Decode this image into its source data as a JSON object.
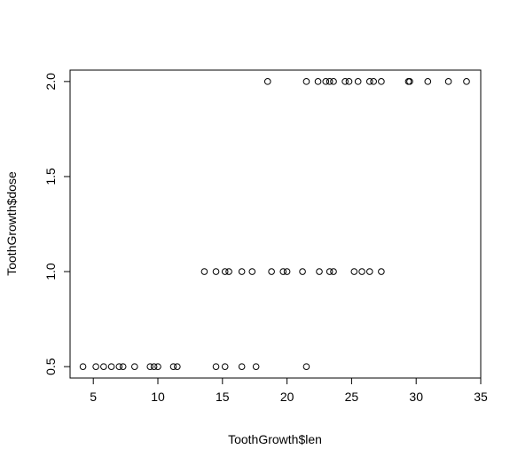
{
  "chart_data": {
    "type": "scatter",
    "title": "",
    "xlabel": "ToothGrowth$len",
    "ylabel": "ToothGrowth$dose",
    "xlim": [
      3.2,
      35
    ],
    "ylim": [
      0.44,
      2.06
    ],
    "x_ticks": [
      5,
      10,
      15,
      20,
      25,
      30,
      35
    ],
    "y_ticks": [
      0.5,
      1.0,
      1.5,
      2.0
    ],
    "x_tick_labels": [
      "5",
      "10",
      "15",
      "20",
      "25",
      "30",
      "35"
    ],
    "y_tick_labels": [
      "0.5",
      "1.0",
      "1.5",
      "2.0"
    ],
    "grid": false,
    "legend": "none",
    "marker": "open-circle",
    "points": [
      {
        "x": 4.2,
        "y": 0.5
      },
      {
        "x": 5.2,
        "y": 0.5
      },
      {
        "x": 5.8,
        "y": 0.5
      },
      {
        "x": 6.4,
        "y": 0.5
      },
      {
        "x": 7.0,
        "y": 0.5
      },
      {
        "x": 7.3,
        "y": 0.5
      },
      {
        "x": 8.2,
        "y": 0.5
      },
      {
        "x": 9.4,
        "y": 0.5
      },
      {
        "x": 9.7,
        "y": 0.5
      },
      {
        "x": 10.0,
        "y": 0.5
      },
      {
        "x": 11.2,
        "y": 0.5
      },
      {
        "x": 11.5,
        "y": 0.5
      },
      {
        "x": 14.5,
        "y": 0.5
      },
      {
        "x": 15.2,
        "y": 0.5
      },
      {
        "x": 16.5,
        "y": 0.5
      },
      {
        "x": 17.6,
        "y": 0.5
      },
      {
        "x": 21.5,
        "y": 0.5
      },
      {
        "x": 13.6,
        "y": 1.0
      },
      {
        "x": 14.5,
        "y": 1.0
      },
      {
        "x": 15.2,
        "y": 1.0
      },
      {
        "x": 15.5,
        "y": 1.0
      },
      {
        "x": 16.5,
        "y": 1.0
      },
      {
        "x": 17.3,
        "y": 1.0
      },
      {
        "x": 18.8,
        "y": 1.0
      },
      {
        "x": 19.7,
        "y": 1.0
      },
      {
        "x": 20.0,
        "y": 1.0
      },
      {
        "x": 21.2,
        "y": 1.0
      },
      {
        "x": 22.5,
        "y": 1.0
      },
      {
        "x": 23.3,
        "y": 1.0
      },
      {
        "x": 23.6,
        "y": 1.0
      },
      {
        "x": 25.2,
        "y": 1.0
      },
      {
        "x": 25.8,
        "y": 1.0
      },
      {
        "x": 26.4,
        "y": 1.0
      },
      {
        "x": 27.3,
        "y": 1.0
      },
      {
        "x": 18.5,
        "y": 2.0
      },
      {
        "x": 21.5,
        "y": 2.0
      },
      {
        "x": 22.4,
        "y": 2.0
      },
      {
        "x": 23.0,
        "y": 2.0
      },
      {
        "x": 23.3,
        "y": 2.0
      },
      {
        "x": 23.6,
        "y": 2.0
      },
      {
        "x": 24.5,
        "y": 2.0
      },
      {
        "x": 24.8,
        "y": 2.0
      },
      {
        "x": 25.5,
        "y": 2.0
      },
      {
        "x": 26.4,
        "y": 2.0
      },
      {
        "x": 26.7,
        "y": 2.0
      },
      {
        "x": 27.3,
        "y": 2.0
      },
      {
        "x": 29.4,
        "y": 2.0
      },
      {
        "x": 29.5,
        "y": 2.0
      },
      {
        "x": 30.9,
        "y": 2.0
      },
      {
        "x": 32.5,
        "y": 2.0
      },
      {
        "x": 33.9,
        "y": 2.0
      }
    ]
  }
}
